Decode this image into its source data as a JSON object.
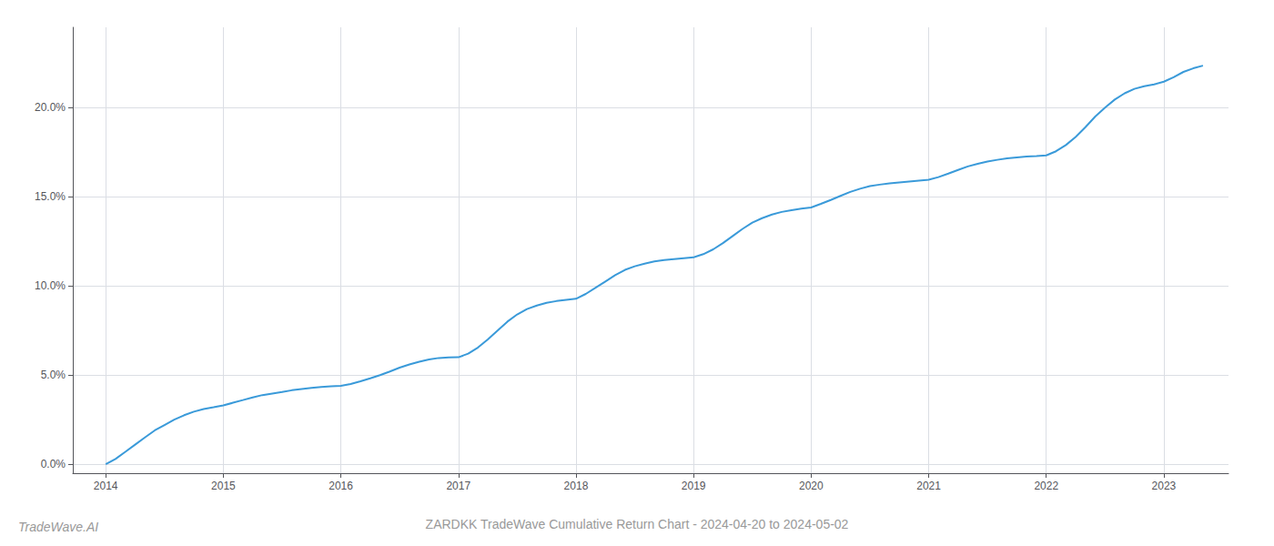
{
  "chart_data": {
    "type": "line",
    "title": "ZARDKK TradeWave Cumulative Return Chart - 2024-04-20 to 2024-05-02",
    "annotations": [
      "TradeWave.AI"
    ],
    "color": "#3a9ad9",
    "grid": true,
    "x": [
      2014.0,
      2014.083,
      2014.167,
      2014.25,
      2014.333,
      2014.417,
      2014.5,
      2014.583,
      2014.667,
      2014.75,
      2014.833,
      2014.917,
      2015.0,
      2015.083,
      2015.167,
      2015.25,
      2015.333,
      2015.417,
      2015.5,
      2015.583,
      2015.667,
      2015.75,
      2015.833,
      2015.917,
      2016.0,
      2016.083,
      2016.167,
      2016.25,
      2016.333,
      2016.417,
      2016.5,
      2016.583,
      2016.667,
      2016.75,
      2016.833,
      2016.917,
      2017.0,
      2017.083,
      2017.167,
      2017.25,
      2017.333,
      2017.417,
      2017.5,
      2017.583,
      2017.667,
      2017.75,
      2017.833,
      2017.917,
      2018.0,
      2018.083,
      2018.167,
      2018.25,
      2018.333,
      2018.417,
      2018.5,
      2018.583,
      2018.667,
      2018.75,
      2018.833,
      2018.917,
      2019.0,
      2019.083,
      2019.167,
      2019.25,
      2019.333,
      2019.417,
      2019.5,
      2019.583,
      2019.667,
      2019.75,
      2019.833,
      2019.917,
      2020.0,
      2020.083,
      2020.167,
      2020.25,
      2020.333,
      2020.417,
      2020.5,
      2020.583,
      2020.667,
      2020.75,
      2020.833,
      2020.917,
      2021.0,
      2021.083,
      2021.167,
      2021.25,
      2021.333,
      2021.417,
      2021.5,
      2021.583,
      2021.667,
      2021.75,
      2021.833,
      2021.917,
      2022.0,
      2022.083,
      2022.167,
      2022.25,
      2022.333,
      2022.417,
      2022.5,
      2022.583,
      2022.667,
      2022.75,
      2022.833,
      2022.917,
      2023.0,
      2023.083,
      2023.167,
      2023.25,
      2023.333
    ],
    "values": [
      0.0,
      0.3,
      0.7,
      1.1,
      1.5,
      1.9,
      2.2,
      2.5,
      2.75,
      2.95,
      3.1,
      3.2,
      3.3,
      3.45,
      3.6,
      3.75,
      3.88,
      3.97,
      4.05,
      4.15,
      4.22,
      4.28,
      4.33,
      4.37,
      4.4,
      4.5,
      4.65,
      4.82,
      5.0,
      5.2,
      5.42,
      5.6,
      5.75,
      5.88,
      5.96,
      5.99,
      6.0,
      6.2,
      6.55,
      7.0,
      7.5,
      8.0,
      8.4,
      8.7,
      8.9,
      9.05,
      9.15,
      9.22,
      9.28,
      9.55,
      9.9,
      10.25,
      10.6,
      10.9,
      11.1,
      11.25,
      11.37,
      11.45,
      11.5,
      11.55,
      11.6,
      11.78,
      12.05,
      12.4,
      12.8,
      13.2,
      13.55,
      13.8,
      14.0,
      14.15,
      14.25,
      14.33,
      14.4,
      14.6,
      14.82,
      15.05,
      15.27,
      15.45,
      15.6,
      15.68,
      15.75,
      15.8,
      15.85,
      15.9,
      15.95,
      16.1,
      16.3,
      16.5,
      16.7,
      16.85,
      16.97,
      17.07,
      17.15,
      17.2,
      17.25,
      17.28,
      17.32,
      17.55,
      17.9,
      18.35,
      18.9,
      19.5,
      20.0,
      20.45,
      20.8,
      21.05,
      21.2,
      21.3,
      21.45,
      21.7,
      22.0,
      22.2,
      22.35
    ],
    "xlim": [
      2013.72,
      2023.55
    ],
    "ylim": [
      -0.5,
      24.5
    ],
    "xticks": [
      2014,
      2015,
      2016,
      2017,
      2018,
      2019,
      2020,
      2021,
      2022,
      2023
    ],
    "yticks": [
      {
        "value": 0.0,
        "label": "0.0%"
      },
      {
        "value": 5.0,
        "label": "5.0%"
      },
      {
        "value": 10.0,
        "label": "10.0%"
      },
      {
        "value": 15.0,
        "label": "15.0%"
      },
      {
        "value": 20.0,
        "label": "20.0%"
      }
    ]
  }
}
